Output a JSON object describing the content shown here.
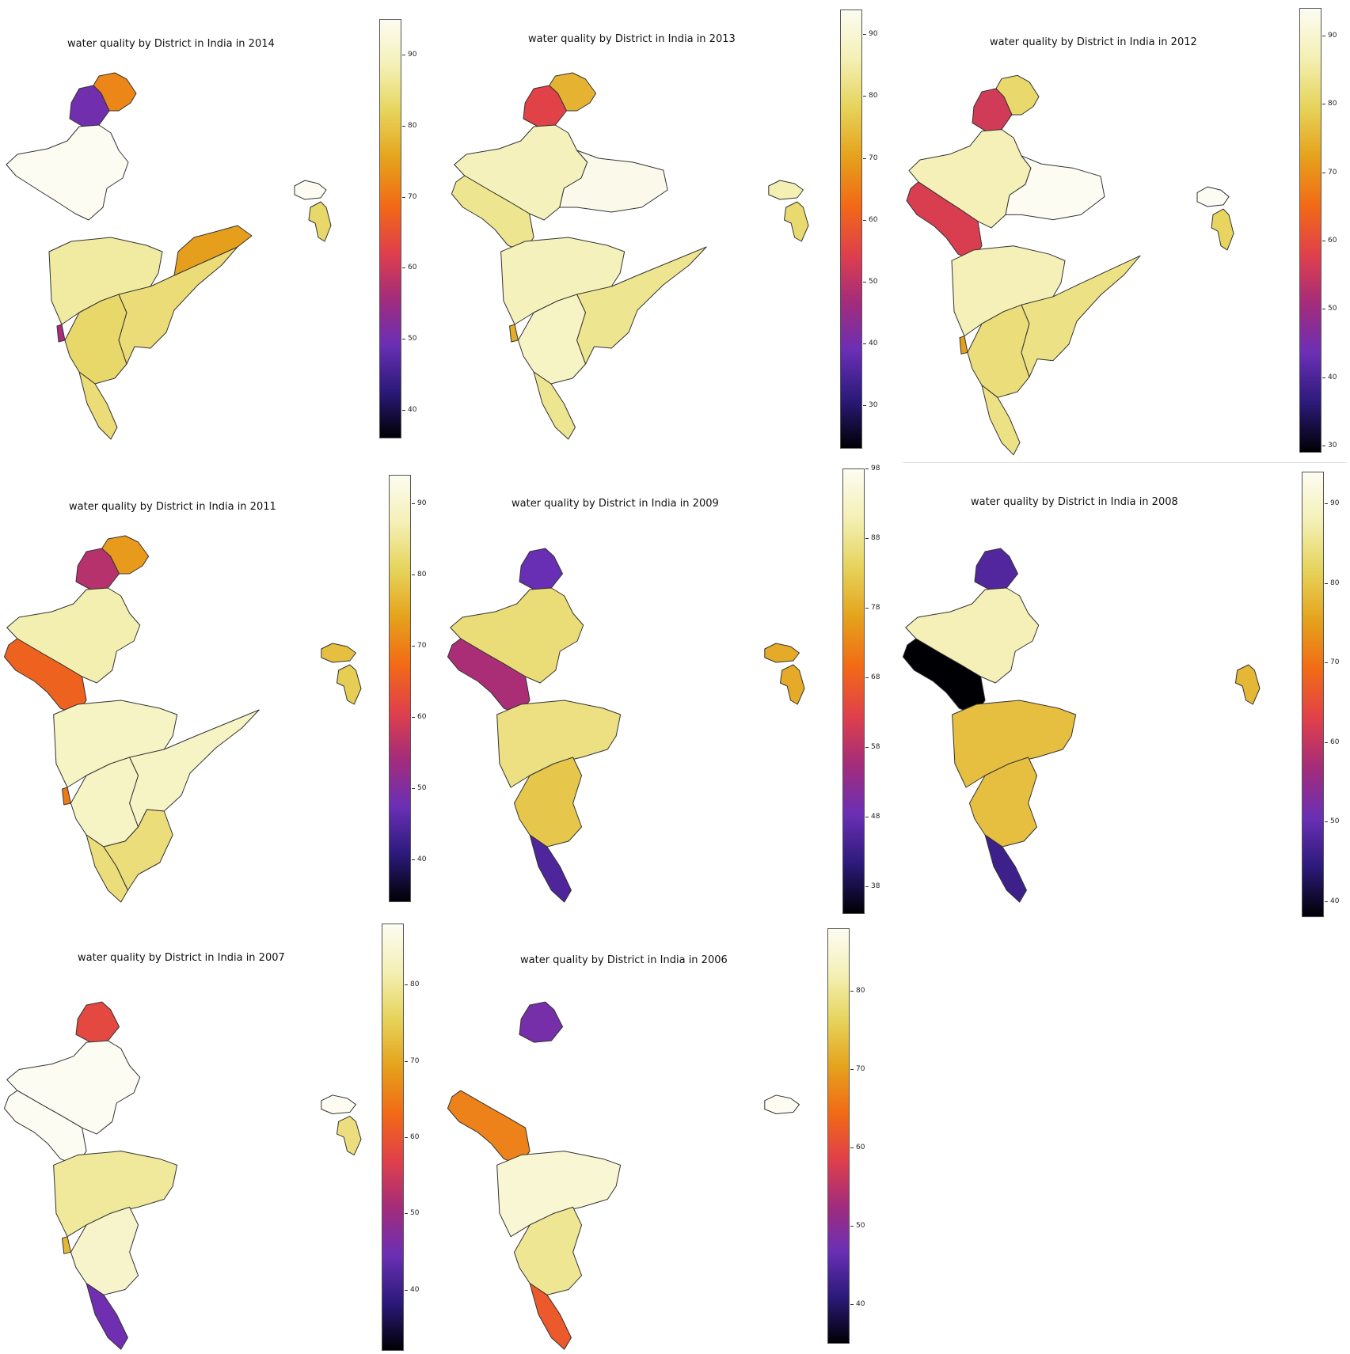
{
  "colormap": {
    "name": "inferno-like",
    "stops": [
      "#000004",
      "#2c1a7a",
      "#6a2fb5",
      "#a32c7b",
      "#e0404a",
      "#f26a16",
      "#e5a21c",
      "#e6d35a",
      "#f4f0b5",
      "#fcfcf2"
    ]
  },
  "maps": [
    {
      "year": 2014,
      "title": "water quality by District in India in 2014",
      "range": [
        36,
        95
      ],
      "ticks": [
        40,
        50,
        60,
        70,
        80,
        90
      ],
      "regions": {
        "punjab": 50,
        "himachal": 72,
        "rajasthan": 95,
        "gujarat": null,
        "mp": null,
        "maharashtra": 87,
        "goa": 56,
        "karnataka": 83,
        "telangana_ap": 84,
        "odisha": 75,
        "kerala": 84,
        "tamil_nadu": null,
        "ne_top": 95,
        "ne_bottom": 83
      }
    },
    {
      "year": 2013,
      "title": "water quality by District in India in 2013",
      "range": [
        23,
        94
      ],
      "ticks": [
        30,
        40,
        50,
        60,
        70,
        80,
        90
      ],
      "regions": {
        "punjab": 55,
        "himachal": 73,
        "rajasthan": 87,
        "gujarat": 83,
        "mp": 93,
        "maharashtra": 87,
        "goa": 72,
        "karnataka": 88,
        "telangana_ap": 83,
        "odisha": null,
        "kerala": 83,
        "tamil_nadu": null,
        "ne_top": 86,
        "ne_bottom": 80
      }
    },
    {
      "year": 2012,
      "title": "water quality by District in India in 2012",
      "range": [
        29,
        94
      ],
      "ticks": [
        30,
        40,
        50,
        60,
        70,
        80,
        90
      ],
      "regions": {
        "punjab": 56,
        "himachal": 81,
        "rajasthan": 87,
        "gujarat": 57,
        "mp": 94,
        "maharashtra": 87,
        "goa": 72,
        "karnataka": 82,
        "telangana_ap": 83,
        "odisha": null,
        "kerala": 83,
        "tamil_nadu": null,
        "ne_top": 94,
        "ne_bottom": 80
      }
    },
    {
      "year": 2011,
      "title": "water quality by District in India in 2011",
      "range": [
        34,
        94
      ],
      "ticks": [
        40,
        50,
        60,
        70,
        80,
        90
      ],
      "regions": {
        "punjab": 56,
        "himachal": 73,
        "rajasthan": 87,
        "gujarat": 66,
        "mp": null,
        "maharashtra": 89,
        "goa": 69,
        "karnataka": 89,
        "telangana_ap": 89,
        "odisha": null,
        "kerala": 83,
        "tamil_nadu": 83,
        "ne_top": 78,
        "ne_bottom": 80
      }
    },
    {
      "year": 2009,
      "title": "water quality by District in India in 2009",
      "range": [
        34,
        98
      ],
      "ticks": [
        38,
        48,
        58,
        68,
        78,
        88,
        98
      ],
      "regions": {
        "punjab": 48,
        "himachal": null,
        "rajasthan": 86,
        "gujarat": 56,
        "mp": null,
        "maharashtra": 87,
        "goa": null,
        "karnataka": 82,
        "telangana_ap": null,
        "odisha": null,
        "kerala": 45,
        "tamil_nadu": null,
        "ne_top": 78,
        "ne_bottom": 78
      }
    },
    {
      "year": 2008,
      "title": "water quality by District in India in 2008",
      "range": [
        38,
        94
      ],
      "ticks": [
        40,
        50,
        60,
        70,
        80,
        90
      ],
      "regions": {
        "punjab": 48,
        "himachal": null,
        "rajasthan": 88,
        "gujarat": 38,
        "mp": null,
        "maharashtra": 79,
        "goa": null,
        "karnataka": 79,
        "telangana_ap": null,
        "odisha": null,
        "kerala": 46,
        "tamil_nadu": null,
        "ne_top": null,
        "ne_bottom": 78
      }
    },
    {
      "year": 2007,
      "title": "water quality by District in India in 2007",
      "range": [
        32,
        88
      ],
      "ticks": [
        40,
        50,
        60,
        70,
        80
      ],
      "regions": {
        "punjab": 58,
        "himachal": null,
        "rajasthan": 88,
        "gujarat": 88,
        "mp": null,
        "maharashtra": 80,
        "goa": 72,
        "karnataka": 84,
        "telangana_ap": null,
        "odisha": null,
        "kerala": 45,
        "tamil_nadu": null,
        "ne_top": 88,
        "ne_bottom": 78
      }
    },
    {
      "year": 2006,
      "title": "water quality by District in India in 2006",
      "range": [
        35,
        88
      ],
      "ticks": [
        40,
        50,
        60,
        70,
        80
      ],
      "regions": {
        "punjab": 48,
        "himachal": null,
        "rajasthan": null,
        "gujarat": 67,
        "mp": null,
        "maharashtra": 85,
        "goa": null,
        "karnataka": 80,
        "telangana_ap": null,
        "odisha": null,
        "kerala": 62,
        "tamil_nadu": null,
        "ne_top": 88,
        "ne_bottom": null
      }
    }
  ]
}
